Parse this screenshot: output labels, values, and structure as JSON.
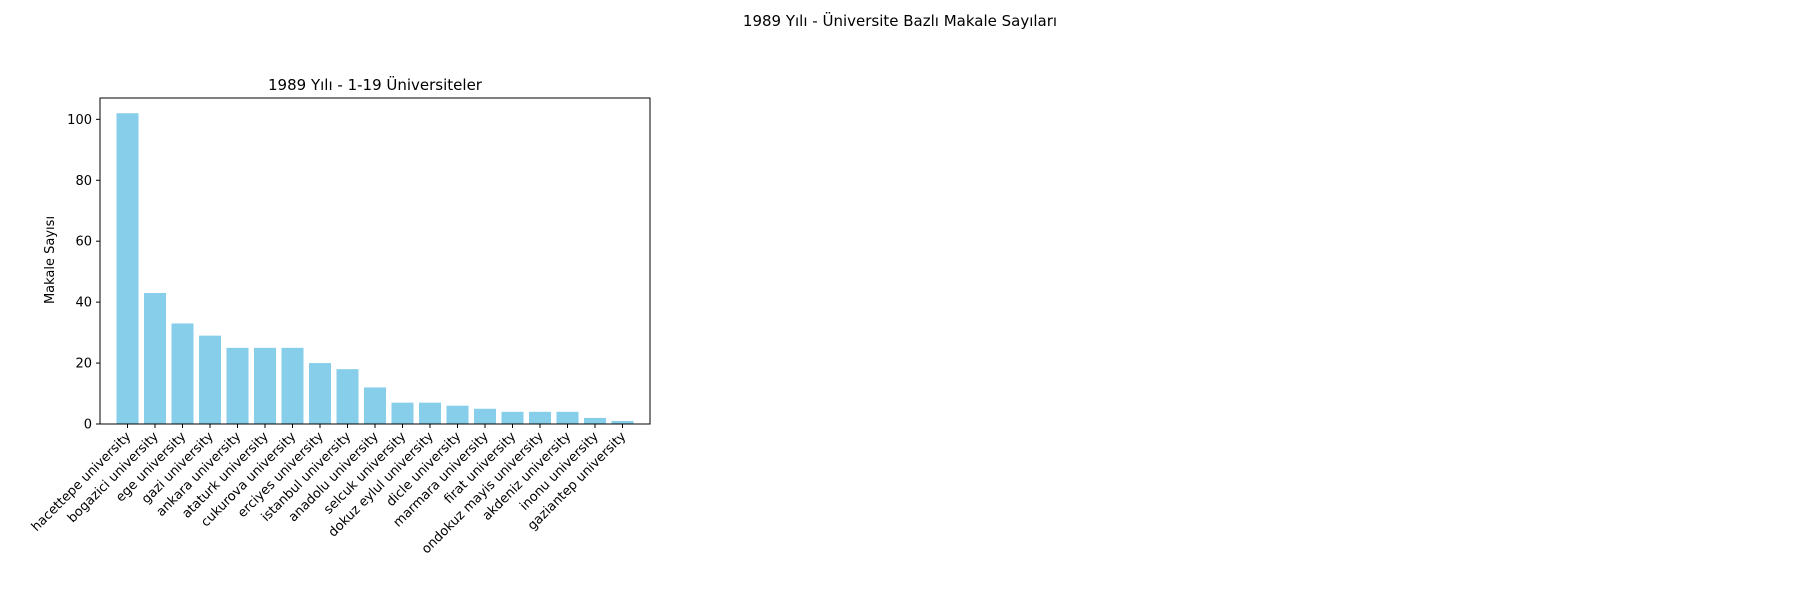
{
  "figure": {
    "suptitle": "1989 Yılı - Üniversite Bazlı Makale Sayıları"
  },
  "chart_data": {
    "type": "bar",
    "title": "1989 Yılı - 1-19 Üniversiteler",
    "xlabel": "",
    "ylabel": "Makale Sayısı",
    "ylim": [
      0,
      107
    ],
    "yticks": [
      0,
      20,
      40,
      60,
      80,
      100
    ],
    "grid": false,
    "bar_color": "#87ceeb",
    "categories": [
      "hacettepe university",
      "bogazici university",
      "ege university",
      "gazi university",
      "ankara university",
      "ataturk university",
      "cukurova university",
      "erciyes university",
      "istanbul university",
      "anadolu university",
      "selcuk university",
      "dokuz eylul university",
      "dicle university",
      "marmara university",
      "firat university",
      "ondokuz mayis university",
      "akdeniz university",
      "inonu university",
      "gaziantep university"
    ],
    "values": [
      102,
      43,
      33,
      29,
      25,
      25,
      25,
      20,
      18,
      12,
      7,
      7,
      6,
      5,
      4,
      4,
      4,
      2,
      1
    ]
  }
}
